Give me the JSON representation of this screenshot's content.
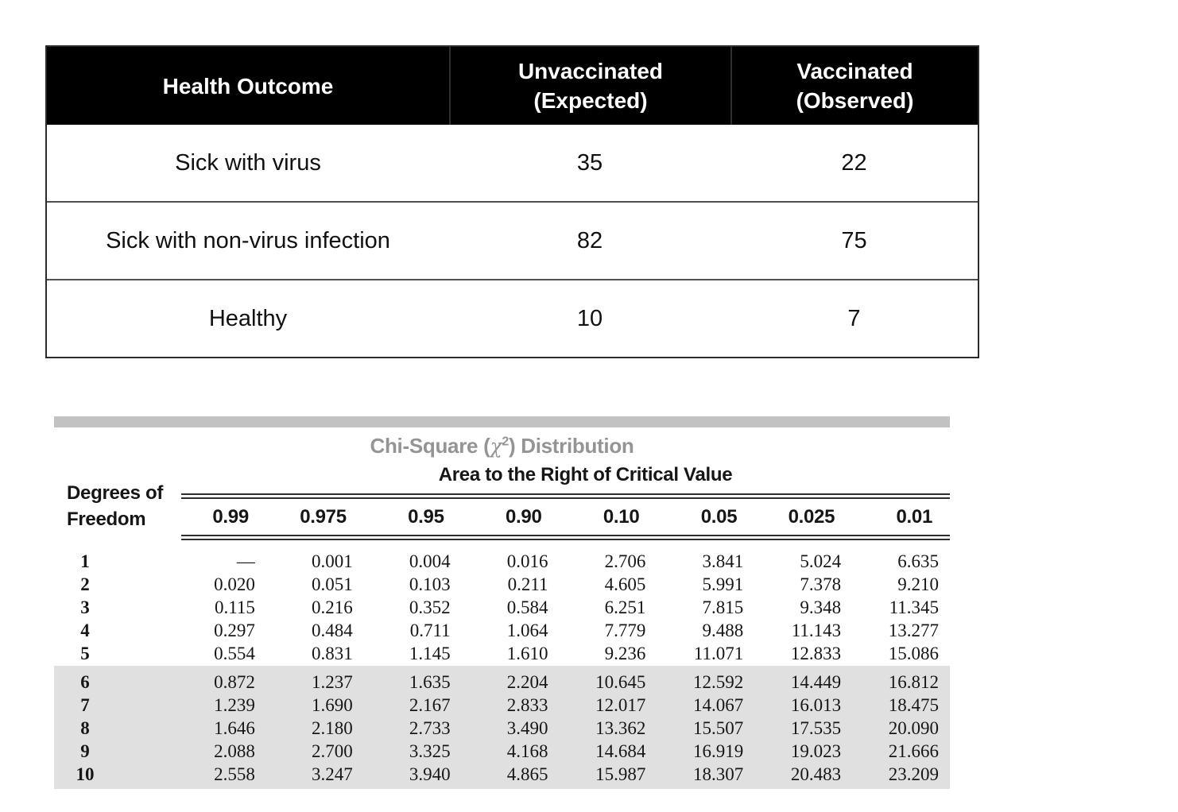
{
  "contingency_table": {
    "header": {
      "outcome": "Health Outcome",
      "unvaccinated": [
        "Unvaccinated",
        "(Expected)"
      ],
      "vaccinated": [
        "Vaccinated",
        "(Observed)"
      ]
    },
    "rows": [
      {
        "outcome": "Sick with virus",
        "unvaccinated": "35",
        "vaccinated": "22"
      },
      {
        "outcome": "Sick with non-virus infection",
        "unvaccinated": "82",
        "vaccinated": "75"
      },
      {
        "outcome": "Healthy",
        "unvaccinated": "10",
        "vaccinated": "7"
      }
    ],
    "colors": {
      "header_bg": "#000000",
      "header_text": "#ffffff"
    }
  },
  "chi_square": {
    "title": {
      "prefix": "Chi-Square (",
      "chi": "χ",
      "exponent": "2",
      "suffix": ") Distribution"
    },
    "subtitle": "Area to the Right of Critical Value",
    "df_header": [
      "Degrees of",
      "Freedom"
    ],
    "columns": [
      "0.99",
      "0.975",
      "0.95",
      "0.90",
      "0.10",
      "0.05",
      "0.025",
      "0.01"
    ],
    "rows": [
      {
        "df": "1",
        "shaded": false,
        "values": [
          "—",
          "0.001",
          "0.004",
          "0.016",
          "2.706",
          "3.841",
          "5.024",
          "6.635"
        ]
      },
      {
        "df": "2",
        "shaded": false,
        "values": [
          "0.020",
          "0.051",
          "0.103",
          "0.211",
          "4.605",
          "5.991",
          "7.378",
          "9.210"
        ]
      },
      {
        "df": "3",
        "shaded": false,
        "values": [
          "0.115",
          "0.216",
          "0.352",
          "0.584",
          "6.251",
          "7.815",
          "9.348",
          "11.345"
        ]
      },
      {
        "df": "4",
        "shaded": false,
        "values": [
          "0.297",
          "0.484",
          "0.711",
          "1.064",
          "7.779",
          "9.488",
          "11.143",
          "13.277"
        ]
      },
      {
        "df": "5",
        "shaded": false,
        "values": [
          "0.554",
          "0.831",
          "1.145",
          "1.610",
          "9.236",
          "11.071",
          "12.833",
          "15.086"
        ]
      },
      {
        "df": "6",
        "shaded": true,
        "values": [
          "0.872",
          "1.237",
          "1.635",
          "2.204",
          "10.645",
          "12.592",
          "14.449",
          "16.812"
        ]
      },
      {
        "df": "7",
        "shaded": true,
        "values": [
          "1.239",
          "1.690",
          "2.167",
          "2.833",
          "12.017",
          "14.067",
          "16.013",
          "18.475"
        ]
      },
      {
        "df": "8",
        "shaded": true,
        "values": [
          "1.646",
          "2.180",
          "2.733",
          "3.490",
          "13.362",
          "15.507",
          "17.535",
          "20.090"
        ]
      },
      {
        "df": "9",
        "shaded": true,
        "values": [
          "2.088",
          "2.700",
          "3.325",
          "4.168",
          "14.684",
          "16.919",
          "19.023",
          "21.666"
        ]
      },
      {
        "df": "10",
        "shaded": true,
        "values": [
          "2.558",
          "3.247",
          "3.940",
          "4.865",
          "15.987",
          "18.307",
          "20.483",
          "23.209"
        ]
      }
    ],
    "colors": {
      "title": "#949494",
      "top_bar": "#c2c2c2",
      "shaded_band": "#e0e0e0"
    }
  }
}
